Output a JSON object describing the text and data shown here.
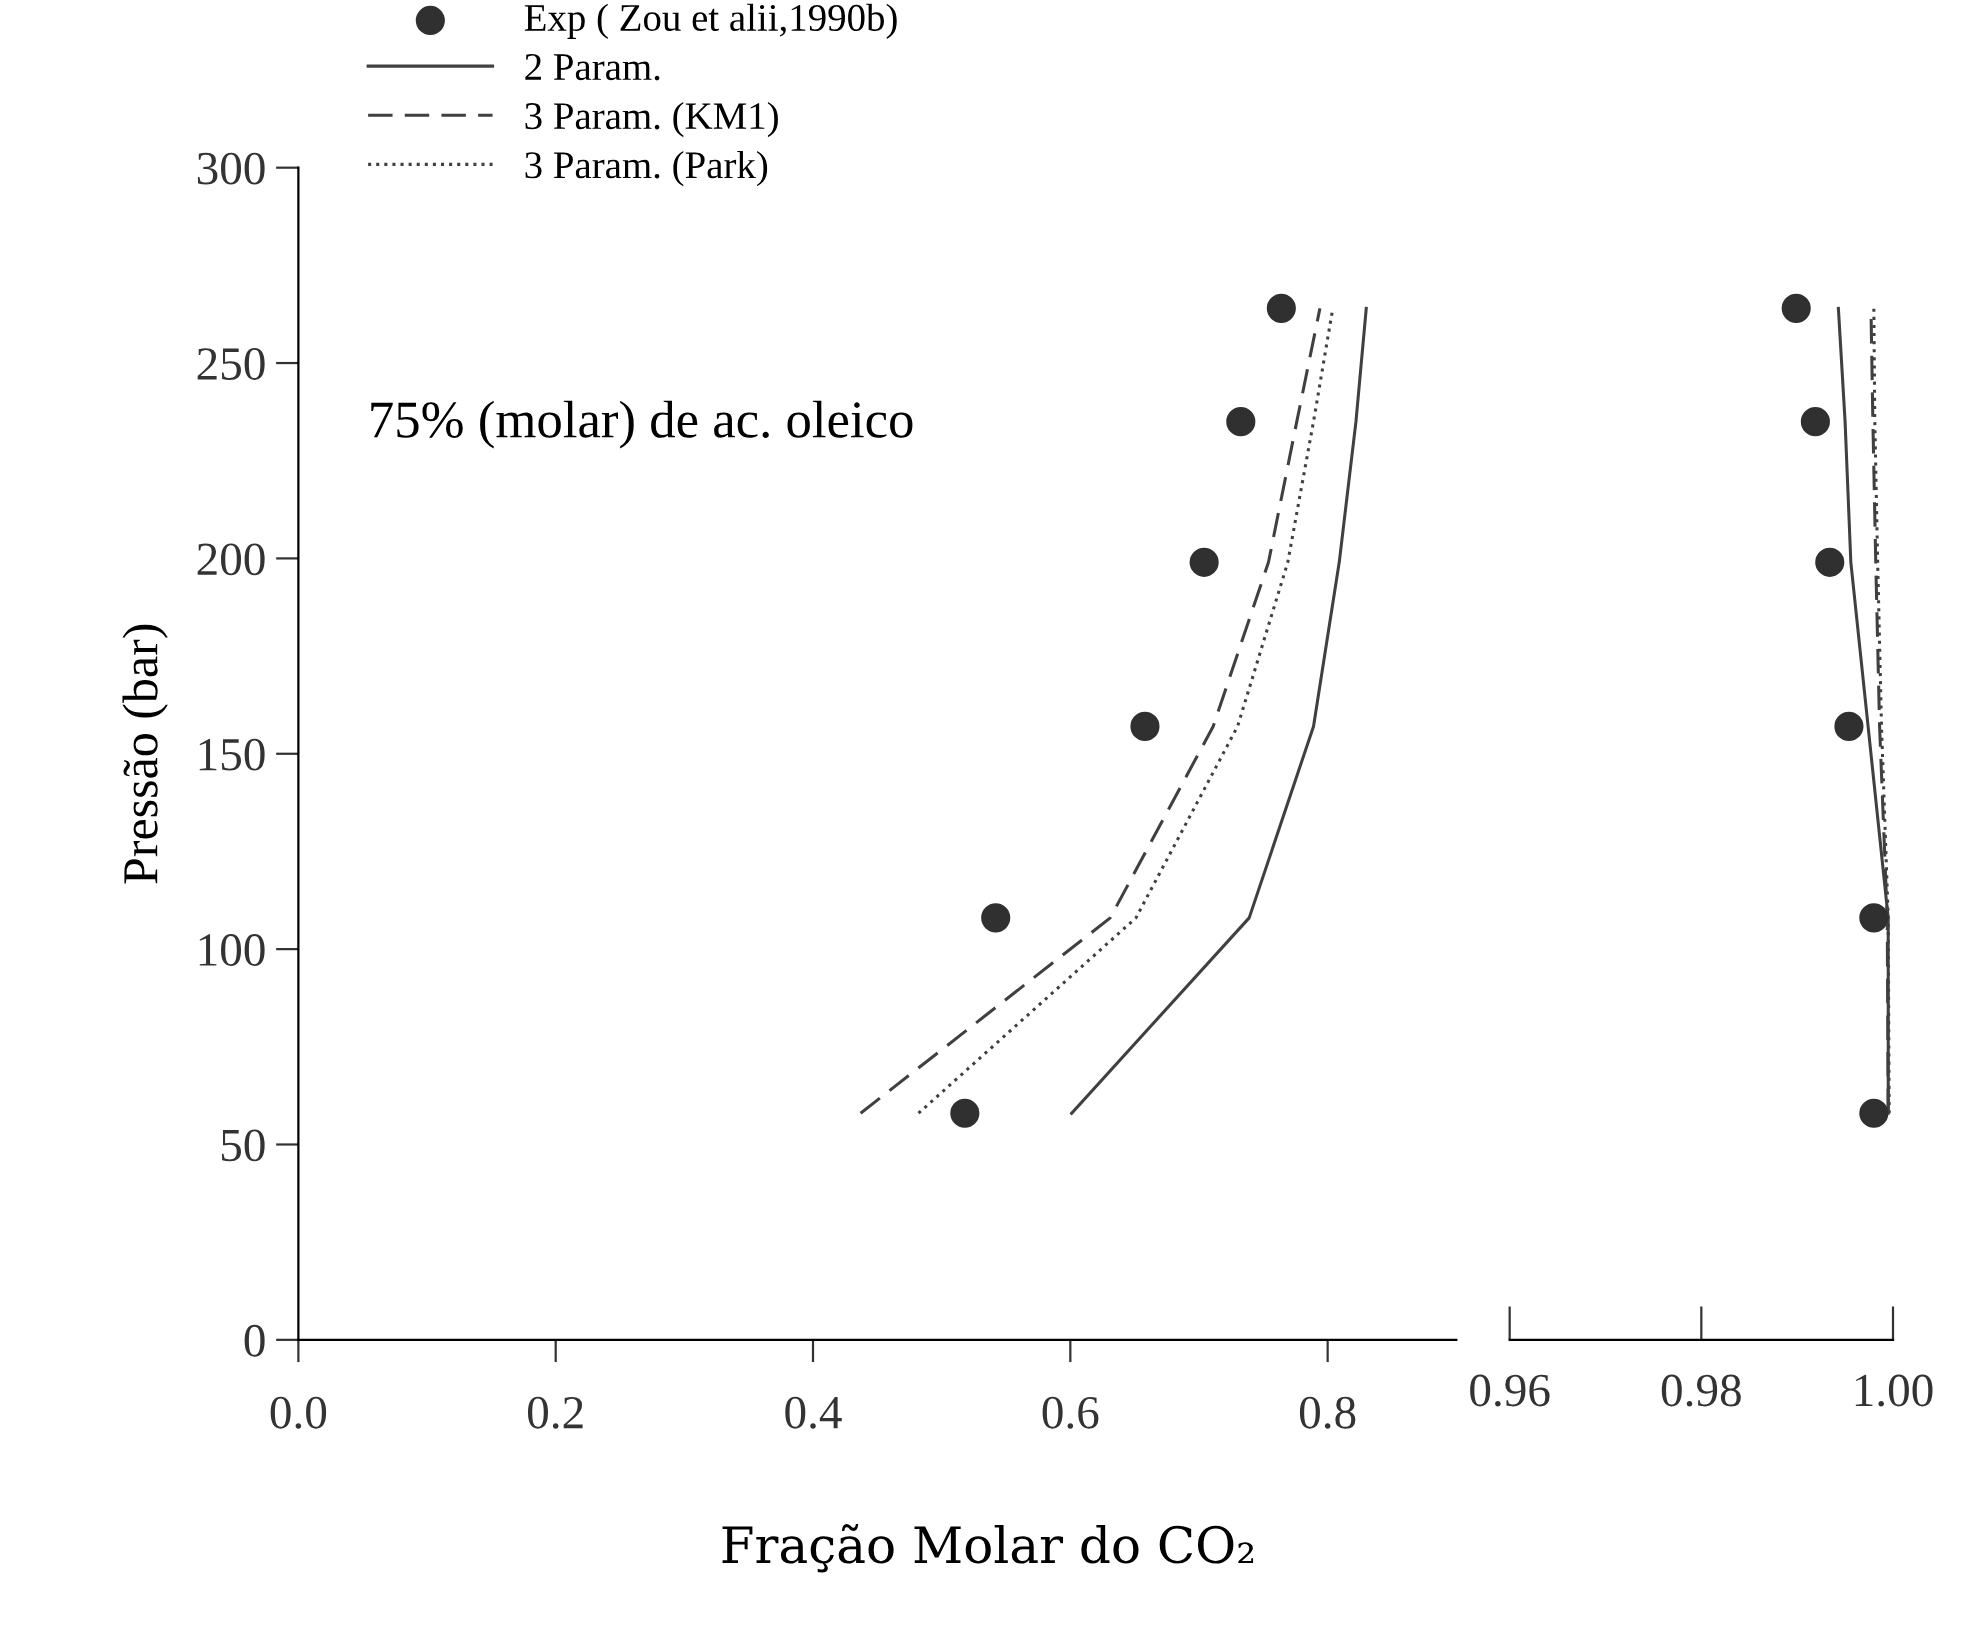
{
  "chart_data": [
    {
      "type": "line",
      "xlabel": "Fração Molar do CO₂",
      "ylabel": "Pressão (bar)",
      "xlim": [
        0,
        0.9
      ],
      "xticks": [
        {
          "value": 0,
          "label": "0.0"
        },
        0.2,
        0.4,
        0.6,
        0.8
      ],
      "ylim": [
        0,
        300
      ],
      "yticks": [
        0,
        50,
        100,
        150,
        200,
        250,
        300
      ],
      "grid": false,
      "legend": "top left",
      "annotations": [
        "75% (molar) de ac. oleico"
      ],
      "series": [
        {
          "name": "Exp ( Zou et alii,1990b)",
          "type": "scatter",
          "marker": "circle",
          "color": "#303030",
          "x": [
            0.518,
            0.542,
            0.658,
            0.704,
            0.7325,
            0.764
          ],
          "values": [
            58,
            108,
            157,
            199,
            235,
            264
          ]
        },
        {
          "name": "2 Param.",
          "line_style": "solid",
          "color": "#404040",
          "x": [
            0.601,
            0.739,
            0.789,
            0.809,
            0.822,
            0.83
          ],
          "values": [
            58,
            108,
            157,
            199,
            235,
            264
          ]
        },
        {
          "name": "3 Param. (KM1)",
          "line_style": "dashed",
          "color": "#404040",
          "x": [
            0.437,
            0.631,
            0.711,
            0.754,
            0.776,
            0.794
          ],
          "values": [
            58,
            108,
            157,
            199,
            235,
            264
          ]
        },
        {
          "name": "3 Param. (Park)",
          "line_style": "dotted",
          "color": "#404040",
          "x": [
            0.482,
            0.651,
            0.73,
            0.769,
            0.789,
            0.804
          ],
          "values": [
            58,
            108,
            157,
            199,
            235,
            264
          ]
        }
      ]
    },
    {
      "type": "line",
      "xlim": [
        0.96,
        1.0
      ],
      "xticks": [
        0.96,
        0.98,
        {
          "value": 1.0,
          "label": "1.00"
        }
      ],
      "ylim": [
        0,
        300
      ],
      "tick_labels": "x",
      "grid": false,
      "series": [
        {
          "type": "scatter",
          "marker": "circle",
          "color": "#303030",
          "x": [
            0.998,
            0.998,
            0.9954,
            0.9934,
            0.9919,
            0.9899
          ],
          "values": [
            58,
            108,
            157,
            199,
            235,
            264
          ]
        },
        {
          "line_style": "solid",
          "color": "#404040",
          "x": [
            0.9995,
            0.9995,
            0.9974,
            0.9956,
            0.995,
            0.9943
          ],
          "values": [
            58,
            108,
            157,
            199,
            235,
            264
          ]
        },
        {
          "line_style": "dashed",
          "color": "#404040",
          "x": [
            0.9995,
            0.9994,
            0.9986,
            0.9982,
            0.9979,
            0.9977
          ],
          "values": [
            58,
            108,
            157,
            199,
            235,
            264
          ]
        },
        {
          "line_style": "dotted",
          "color": "#404040",
          "x": [
            0.9996,
            0.9995,
            0.9988,
            0.9984,
            0.9981,
            0.998
          ],
          "values": [
            58,
            108,
            157,
            199,
            235,
            264
          ]
        }
      ]
    }
  ]
}
